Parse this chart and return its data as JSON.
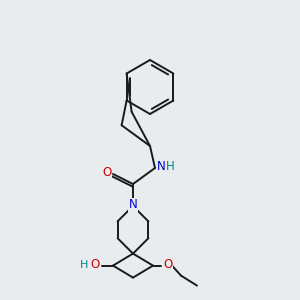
{
  "background_color": "#e8ecee",
  "bond_color": "#1a1a1a",
  "atom_colors": {
    "O": "#cc0000",
    "N": "#0000cc",
    "N_H": "#008888",
    "C": "#1a1a1a"
  },
  "figsize": [
    3.0,
    3.0
  ],
  "dpi": 100,
  "lw": 1.4,
  "fontsize": 8.5
}
